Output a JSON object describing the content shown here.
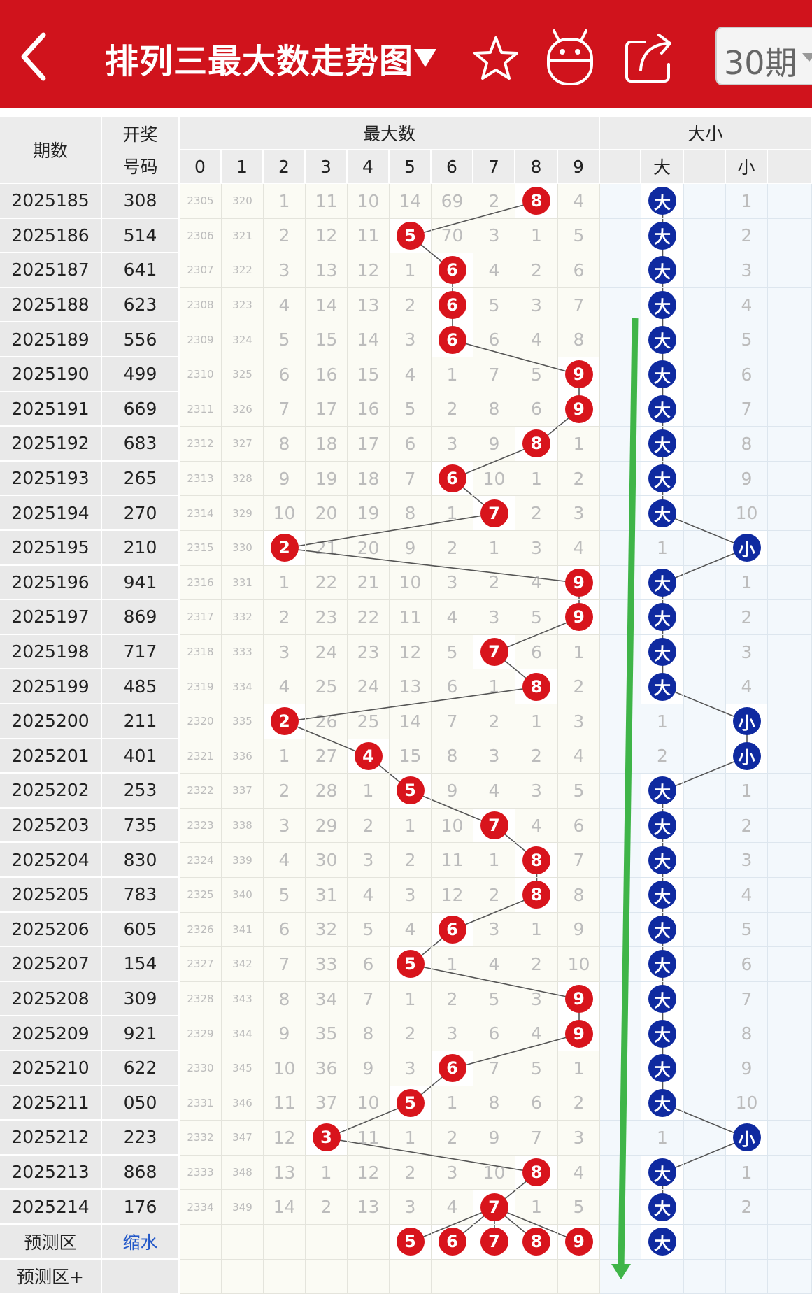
{
  "header": {
    "title": "排列三最大数走势图",
    "period_select": "30期"
  },
  "table": {
    "col_issue": "期数",
    "col_draw_line1": "开奖",
    "col_draw_line2": "号码",
    "col_group_max": "最大数",
    "col_group_size": "大小",
    "digits": [
      "0",
      "1",
      "2",
      "3",
      "4",
      "5",
      "6",
      "7",
      "8",
      "9"
    ],
    "size_cols": [
      "大",
      "小"
    ],
    "rows": [
      {
        "issue": "2025185",
        "code": "308",
        "cells": [
          "2305",
          "320",
          "1",
          "11",
          "10",
          "14",
          "69",
          "2",
          "8",
          "4"
        ],
        "max": 8,
        "size": "大",
        "size_other": "1"
      },
      {
        "issue": "2025186",
        "code": "514",
        "cells": [
          "2306",
          "321",
          "2",
          "12",
          "11",
          "5",
          "70",
          "3",
          "1",
          "5"
        ],
        "max": 5,
        "size": "大",
        "size_other": "2"
      },
      {
        "issue": "2025187",
        "code": "641",
        "cells": [
          "2307",
          "322",
          "3",
          "13",
          "12",
          "1",
          "6",
          "4",
          "2",
          "6"
        ],
        "max": 6,
        "size": "大",
        "size_other": "3"
      },
      {
        "issue": "2025188",
        "code": "623",
        "cells": [
          "2308",
          "323",
          "4",
          "14",
          "13",
          "2",
          "6",
          "5",
          "3",
          "7"
        ],
        "max": 6,
        "size": "大",
        "size_other": "4"
      },
      {
        "issue": "2025189",
        "code": "556",
        "cells": [
          "2309",
          "324",
          "5",
          "15",
          "14",
          "3",
          "6",
          "6",
          "4",
          "8"
        ],
        "max": 6,
        "size": "大",
        "size_other": "5"
      },
      {
        "issue": "2025190",
        "code": "499",
        "cells": [
          "2310",
          "325",
          "6",
          "16",
          "15",
          "4",
          "1",
          "7",
          "5",
          "9"
        ],
        "max": 9,
        "size": "大",
        "size_other": "6"
      },
      {
        "issue": "2025191",
        "code": "669",
        "cells": [
          "2311",
          "326",
          "7",
          "17",
          "16",
          "5",
          "2",
          "8",
          "6",
          "9"
        ],
        "max": 9,
        "size": "大",
        "size_other": "7"
      },
      {
        "issue": "2025192",
        "code": "683",
        "cells": [
          "2312",
          "327",
          "8",
          "18",
          "17",
          "6",
          "3",
          "9",
          "8",
          "1"
        ],
        "max": 8,
        "size": "大",
        "size_other": "8"
      },
      {
        "issue": "2025193",
        "code": "265",
        "cells": [
          "2313",
          "328",
          "9",
          "19",
          "18",
          "7",
          "6",
          "10",
          "1",
          "2"
        ],
        "max": 6,
        "size": "大",
        "size_other": "9"
      },
      {
        "issue": "2025194",
        "code": "270",
        "cells": [
          "2314",
          "329",
          "10",
          "20",
          "19",
          "8",
          "1",
          "7",
          "2",
          "3"
        ],
        "max": 7,
        "size": "大",
        "size_other": "10"
      },
      {
        "issue": "2025195",
        "code": "210",
        "cells": [
          "2315",
          "330",
          "2",
          "21",
          "20",
          "9",
          "2",
          "1",
          "3",
          "4"
        ],
        "max": 2,
        "size": "小",
        "size_other": "1"
      },
      {
        "issue": "2025196",
        "code": "941",
        "cells": [
          "2316",
          "331",
          "1",
          "22",
          "21",
          "10",
          "3",
          "2",
          "4",
          "9"
        ],
        "max": 9,
        "size": "大",
        "size_other": "1"
      },
      {
        "issue": "2025197",
        "code": "869",
        "cells": [
          "2317",
          "332",
          "2",
          "23",
          "22",
          "11",
          "4",
          "3",
          "5",
          "9"
        ],
        "max": 9,
        "size": "大",
        "size_other": "2"
      },
      {
        "issue": "2025198",
        "code": "717",
        "cells": [
          "2318",
          "333",
          "3",
          "24",
          "23",
          "12",
          "5",
          "7",
          "6",
          "1"
        ],
        "max": 7,
        "size": "大",
        "size_other": "3"
      },
      {
        "issue": "2025199",
        "code": "485",
        "cells": [
          "2319",
          "334",
          "4",
          "25",
          "24",
          "13",
          "6",
          "1",
          "8",
          "2"
        ],
        "max": 8,
        "size": "大",
        "size_other": "4"
      },
      {
        "issue": "2025200",
        "code": "211",
        "cells": [
          "2320",
          "335",
          "2",
          "26",
          "25",
          "14",
          "7",
          "2",
          "1",
          "3"
        ],
        "max": 2,
        "size": "小",
        "size_other": "1"
      },
      {
        "issue": "2025201",
        "code": "401",
        "cells": [
          "2321",
          "336",
          "1",
          "27",
          "4",
          "15",
          "8",
          "3",
          "2",
          "4"
        ],
        "max": 4,
        "size": "小",
        "size_other": "2"
      },
      {
        "issue": "2025202",
        "code": "253",
        "cells": [
          "2322",
          "337",
          "2",
          "28",
          "1",
          "5",
          "9",
          "4",
          "3",
          "5"
        ],
        "max": 5,
        "size": "大",
        "size_other": "1"
      },
      {
        "issue": "2025203",
        "code": "735",
        "cells": [
          "2323",
          "338",
          "3",
          "29",
          "2",
          "1",
          "10",
          "7",
          "4",
          "6"
        ],
        "max": 7,
        "size": "大",
        "size_other": "2"
      },
      {
        "issue": "2025204",
        "code": "830",
        "cells": [
          "2324",
          "339",
          "4",
          "30",
          "3",
          "2",
          "11",
          "1",
          "8",
          "7"
        ],
        "max": 8,
        "size": "大",
        "size_other": "3"
      },
      {
        "issue": "2025205",
        "code": "783",
        "cells": [
          "2325",
          "340",
          "5",
          "31",
          "4",
          "3",
          "12",
          "2",
          "8",
          "8"
        ],
        "max": 8,
        "size": "大",
        "size_other": "4"
      },
      {
        "issue": "2025206",
        "code": "605",
        "cells": [
          "2326",
          "341",
          "6",
          "32",
          "5",
          "4",
          "6",
          "3",
          "1",
          "9"
        ],
        "max": 6,
        "size": "大",
        "size_other": "5"
      },
      {
        "issue": "2025207",
        "code": "154",
        "cells": [
          "2327",
          "342",
          "7",
          "33",
          "6",
          "5",
          "1",
          "4",
          "2",
          "10"
        ],
        "max": 5,
        "size": "大",
        "size_other": "6"
      },
      {
        "issue": "2025208",
        "code": "309",
        "cells": [
          "2328",
          "343",
          "8",
          "34",
          "7",
          "1",
          "2",
          "5",
          "3",
          "9"
        ],
        "max": 9,
        "size": "大",
        "size_other": "7"
      },
      {
        "issue": "2025209",
        "code": "921",
        "cells": [
          "2329",
          "344",
          "9",
          "35",
          "8",
          "2",
          "3",
          "6",
          "4",
          "9"
        ],
        "max": 9,
        "size": "大",
        "size_other": "8"
      },
      {
        "issue": "2025210",
        "code": "622",
        "cells": [
          "2330",
          "345",
          "10",
          "36",
          "9",
          "3",
          "6",
          "7",
          "5",
          "1"
        ],
        "max": 6,
        "size": "大",
        "size_other": "9"
      },
      {
        "issue": "2025211",
        "code": "050",
        "cells": [
          "2331",
          "346",
          "11",
          "37",
          "10",
          "5",
          "1",
          "8",
          "6",
          "2"
        ],
        "max": 5,
        "size": "大",
        "size_other": "10"
      },
      {
        "issue": "2025212",
        "code": "223",
        "cells": [
          "2332",
          "347",
          "12",
          "3",
          "11",
          "1",
          "2",
          "9",
          "7",
          "3"
        ],
        "max": 3,
        "size": "小",
        "size_other": "1"
      },
      {
        "issue": "2025213",
        "code": "868",
        "cells": [
          "2333",
          "348",
          "13",
          "1",
          "12",
          "2",
          "3",
          "10",
          "8",
          "4"
        ],
        "max": 8,
        "size": "大",
        "size_other": "1"
      },
      {
        "issue": "2025214",
        "code": "176",
        "cells": [
          "2334",
          "349",
          "14",
          "2",
          "13",
          "3",
          "4",
          "7",
          "1",
          "5"
        ],
        "max": 7,
        "size": "大",
        "size_other": "2"
      }
    ],
    "predict_label": "预测区",
    "predict_link": "缩水",
    "predict_balls": [
      "5",
      "6",
      "7",
      "8",
      "9"
    ],
    "predict_size": "大",
    "predict_plus_label": "预测区+"
  },
  "colors": {
    "brand_red": "#d0131c",
    "ball_red": "#d8141c",
    "ball_blue": "#0f2aa0",
    "arrow_green": "#3fb548"
  }
}
